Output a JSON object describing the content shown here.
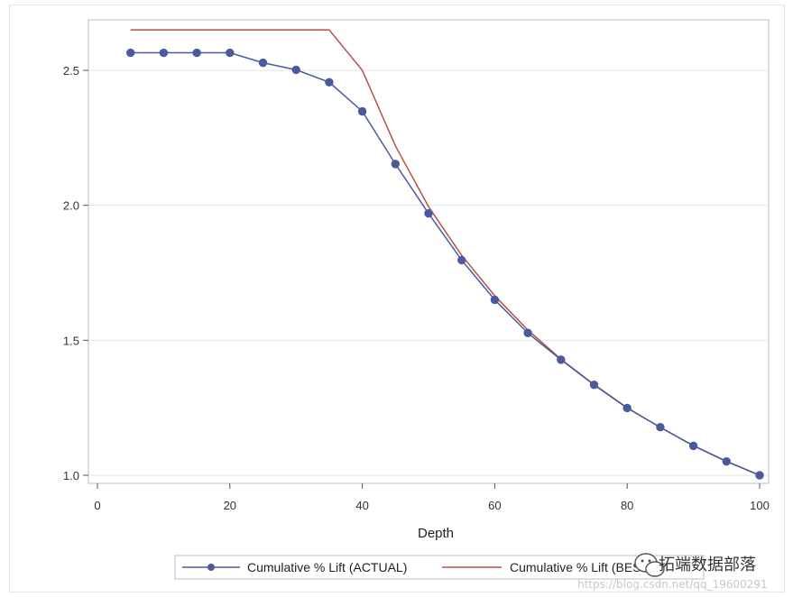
{
  "chart_data": {
    "type": "line",
    "xlabel": "Depth",
    "ylabel": "",
    "xlim": [
      0,
      100
    ],
    "ylim": [
      0.98,
      2.66
    ],
    "x_ticks": [
      0,
      20,
      40,
      60,
      80,
      100
    ],
    "y_ticks": [
      1.0,
      1.5,
      2.0,
      2.5
    ],
    "y_tick_labels": [
      "1.0",
      "1.5",
      "2.0",
      "2.5"
    ],
    "grid": "horizontal",
    "legend_position": "bottom",
    "series": [
      {
        "name": "Cumulative % Lift (ACTUAL)",
        "color": "#4a5a9c",
        "marker": "circle",
        "x": [
          5,
          10,
          15,
          20,
          25,
          30,
          35,
          40,
          45,
          50,
          55,
          60,
          65,
          70,
          75,
          80,
          85,
          90,
          95,
          100
        ],
        "y": [
          2.565,
          2.565,
          2.565,
          2.565,
          2.528,
          2.502,
          2.456,
          2.348,
          2.153,
          1.97,
          1.797,
          1.65,
          1.527,
          1.428,
          1.335,
          1.249,
          1.178,
          1.109,
          1.051,
          1.0
        ]
      },
      {
        "name": "Cumulative % Lift (BEST)",
        "color": "#b5514d",
        "marker": "none",
        "x": [
          5,
          35,
          40,
          45,
          50,
          55,
          60,
          65,
          70,
          75,
          80,
          85,
          90,
          95,
          100
        ],
        "y": [
          2.65,
          2.65,
          2.5,
          2.22,
          1.995,
          1.815,
          1.665,
          1.538,
          1.43,
          1.336,
          1.25,
          1.177,
          1.11,
          1.052,
          1.0
        ]
      }
    ]
  },
  "watermark": {
    "brand": "拓端数据部落",
    "url": "https://blog.csdn.net/qq_19600291"
  }
}
